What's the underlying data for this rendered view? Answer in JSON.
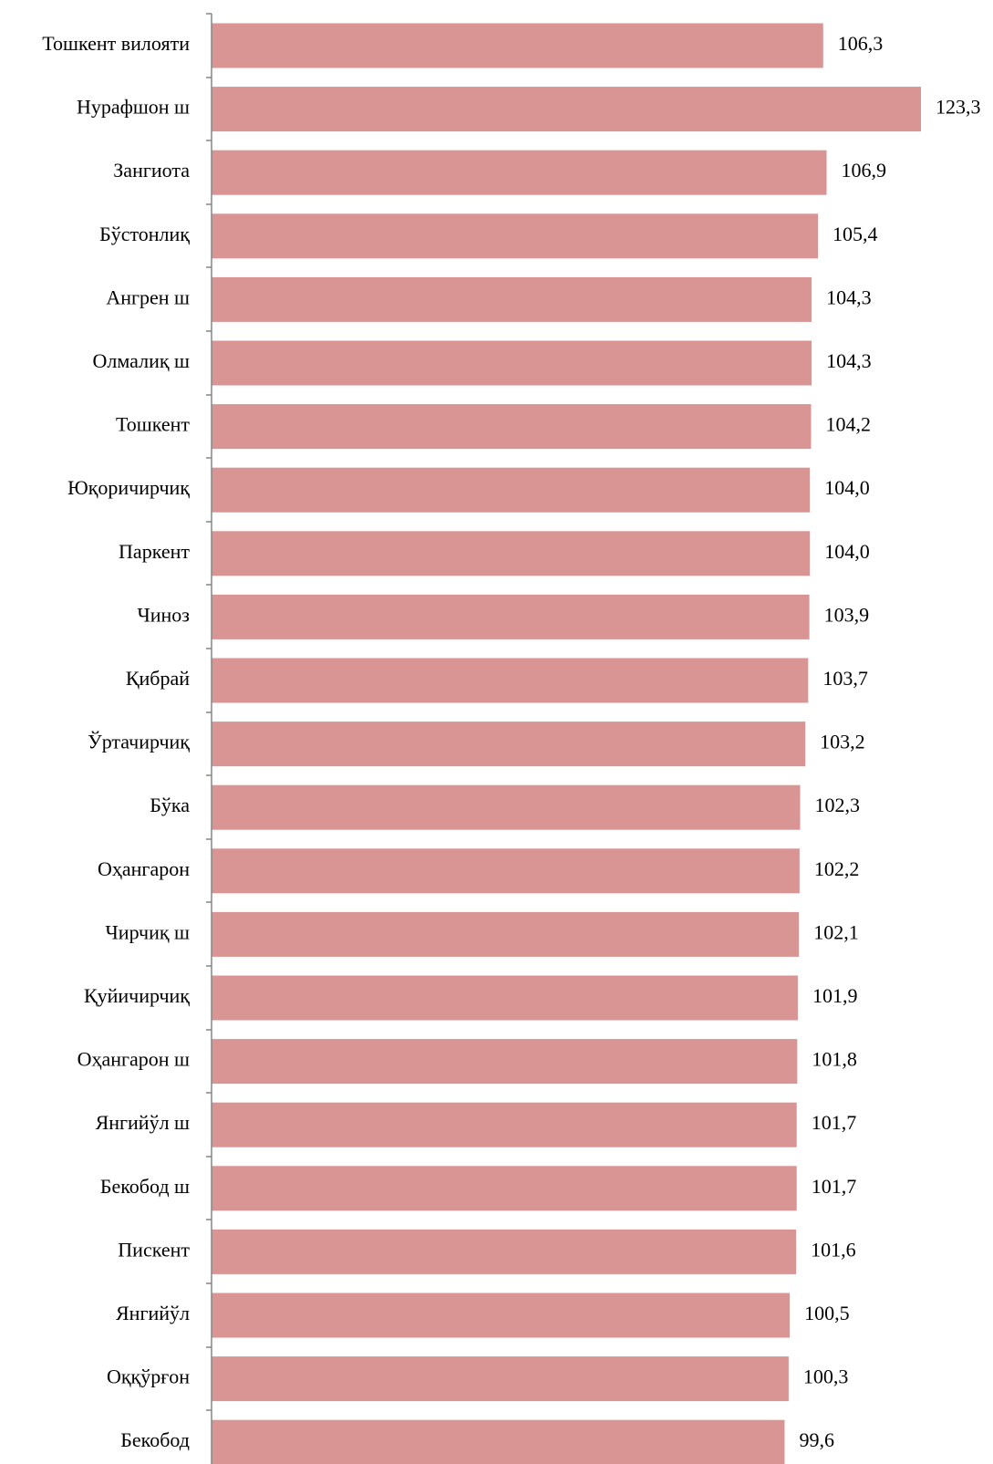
{
  "chart_data": {
    "type": "bar",
    "orientation": "horizontal",
    "categories": [
      "Тошкент вилояти",
      "Нурафшон ш",
      "Зангиота",
      "Бўстонлиқ",
      "Ангрен ш",
      "Олмалиқ ш",
      "Тошкент",
      "Юқоричирчиқ",
      "Паркент",
      "Чиноз",
      "Қибрай",
      "Ўртачирчиқ",
      "Бўка",
      "Оҳангарон",
      "Чирчиқ ш",
      "Қуйичирчиқ",
      "Оҳангарон ш",
      "Янгийўл ш",
      "Бекобод ш",
      "Пискент",
      "Янгийўл",
      "Оққўрғон",
      "Бекобод"
    ],
    "values": [
      106.3,
      123.3,
      106.9,
      105.4,
      104.3,
      104.3,
      104.2,
      104.0,
      104.0,
      103.9,
      103.7,
      103.2,
      102.3,
      102.2,
      102.1,
      101.9,
      101.8,
      101.7,
      101.7,
      101.6,
      100.5,
      100.3,
      99.6
    ],
    "value_labels": [
      "106,3",
      "123,3",
      "106,9",
      "105,4",
      "104,3",
      "104,3",
      "104,2",
      "104,0",
      "104,0",
      "103,9",
      "103,7",
      "103,2",
      "102,3",
      "102,2",
      "102,1",
      "101,9",
      "101,8",
      "101,7",
      "101,7",
      "101,6",
      "100,5",
      "100,3",
      "99,6"
    ],
    "title": "",
    "xlabel": "",
    "ylabel": "",
    "xlim": [
      0,
      123.3
    ],
    "grid": false,
    "bar_color": "#d99594",
    "axis_color": "#868686"
  }
}
